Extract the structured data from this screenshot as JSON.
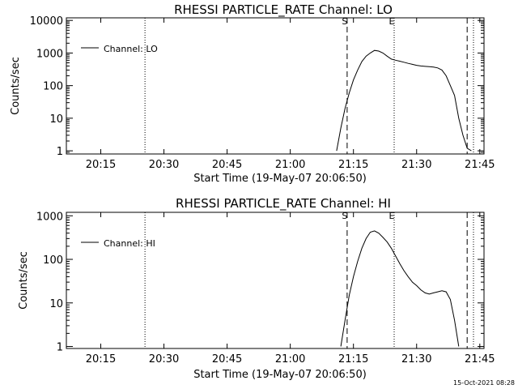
{
  "footer": {
    "stamp": "15-Oct-2021 08:28"
  },
  "chart_data": [
    {
      "type": "line",
      "title": "RHESSI PARTICLE_RATE Channel: LO",
      "xlabel": "Start Time (19-May-07 20:06:50)",
      "ylabel": "Counts/sec",
      "xlim": [
        "20:06:50",
        "21:46:00"
      ],
      "x_ticks": [
        "20:15",
        "20:30",
        "20:45",
        "21:00",
        "21:15",
        "21:30",
        "21:45"
      ],
      "yscale": "log",
      "ylim": [
        0.8,
        12000
      ],
      "y_ticks": [
        "1",
        "10",
        "100",
        "1000",
        "10000"
      ],
      "grid": false,
      "legend": {
        "position": "top-left",
        "entries": [
          "Channel: LO"
        ]
      },
      "markers": [
        {
          "time": "20:25:30",
          "style": "dotted",
          "label": ""
        },
        {
          "time": "21:13:30",
          "style": "dashed",
          "label": "S"
        },
        {
          "time": "21:24:40",
          "style": "dotted",
          "label": "E"
        },
        {
          "time": "21:42:00",
          "style": "dashed",
          "label": ""
        },
        {
          "time": "21:43:30",
          "style": "dotted",
          "label": ""
        }
      ],
      "series": [
        {
          "name": "Channel: LO",
          "x": [
            "21:11:00",
            "21:12:00",
            "21:13:00",
            "21:14:00",
            "21:15:00",
            "21:16:00",
            "21:17:00",
            "21:18:00",
            "21:19:00",
            "21:20:00",
            "21:21:00",
            "21:22:00",
            "21:23:00",
            "21:24:00",
            "21:25:00",
            "21:26:00",
            "21:27:00",
            "21:28:00",
            "21:29:00",
            "21:30:00",
            "21:31:00",
            "21:32:00",
            "21:33:00",
            "21:34:00",
            "21:35:00",
            "21:36:00",
            "21:37:00",
            "21:38:00",
            "21:39:00",
            "21:40:00",
            "21:41:00",
            "21:42:00",
            "21:43:00"
          ],
          "values": [
            1.0,
            5,
            20,
            60,
            150,
            300,
            550,
            800,
            1000,
            1200,
            1150,
            1000,
            800,
            650,
            600,
            560,
            520,
            480,
            450,
            420,
            400,
            390,
            380,
            370,
            350,
            300,
            200,
            100,
            50,
            10,
            3,
            1.2,
            1
          ]
        }
      ]
    },
    {
      "type": "line",
      "title": "RHESSI PARTICLE_RATE Channel: HI",
      "xlabel": "Start Time (19-May-07 20:06:50)",
      "ylabel": "Counts/sec",
      "xlim": [
        "20:06:50",
        "21:46:00"
      ],
      "x_ticks": [
        "20:15",
        "20:30",
        "20:45",
        "21:00",
        "21:15",
        "21:30",
        "21:45"
      ],
      "yscale": "log",
      "ylim": [
        0.9,
        1200
      ],
      "y_ticks": [
        "1",
        "10",
        "100",
        "1000"
      ],
      "grid": false,
      "legend": {
        "position": "top-left",
        "entries": [
          "Channel: HI"
        ]
      },
      "markers": [
        {
          "time": "20:25:30",
          "style": "dotted",
          "label": ""
        },
        {
          "time": "21:13:30",
          "style": "dashed",
          "label": "S"
        },
        {
          "time": "21:24:40",
          "style": "dotted",
          "label": "E"
        },
        {
          "time": "21:42:00",
          "style": "dashed",
          "label": ""
        },
        {
          "time": "21:43:30",
          "style": "dotted",
          "label": ""
        }
      ],
      "series": [
        {
          "name": "Channel: HI",
          "x": [
            "21:12:00",
            "21:13:00",
            "21:14:00",
            "21:15:00",
            "21:16:00",
            "21:17:00",
            "21:18:00",
            "21:19:00",
            "21:20:00",
            "21:21:00",
            "21:22:00",
            "21:23:00",
            "21:24:00",
            "21:25:00",
            "21:26:00",
            "21:27:00",
            "21:28:00",
            "21:29:00",
            "21:30:00",
            "21:31:00",
            "21:32:00",
            "21:33:00",
            "21:34:00",
            "21:35:00",
            "21:36:00",
            "21:37:00",
            "21:38:00",
            "21:39:00",
            "21:40:00"
          ],
          "values": [
            1,
            4,
            15,
            40,
            90,
            180,
            300,
            420,
            450,
            400,
            320,
            250,
            180,
            120,
            80,
            55,
            40,
            30,
            25,
            20,
            17,
            16,
            17,
            18,
            19,
            18,
            12,
            4,
            1
          ]
        }
      ]
    }
  ]
}
